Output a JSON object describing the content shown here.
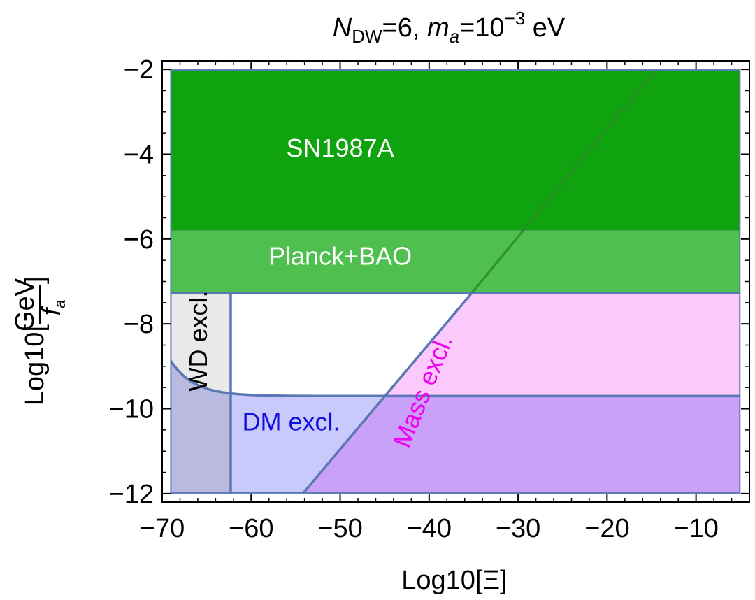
{
  "chart_data": {
    "type": "region",
    "title": {
      "n_symbol": "N",
      "n_sub": "DW",
      "n_value": "=6, ",
      "m_symbol": "m",
      "m_sub": "a",
      "m_value": "=10",
      "m_exp": "−3",
      "m_unit": " eV"
    },
    "xlabel": "Log10[Ξ]",
    "ylabel": {
      "prefix": "Log10[",
      "numerator": "GeV",
      "denominator_symbol": "f",
      "denominator_sub": "a",
      "suffix": "]"
    },
    "xlim": [
      -70,
      -4
    ],
    "ylim": [
      -12.2,
      -1.8
    ],
    "x_ticks": [
      {
        "value": -70,
        "label": "−70"
      },
      {
        "value": -60,
        "label": "−60"
      },
      {
        "value": -50,
        "label": "−50"
      },
      {
        "value": -40,
        "label": "−40"
      },
      {
        "value": -30,
        "label": "−30"
      },
      {
        "value": -20,
        "label": "−20"
      },
      {
        "value": -10,
        "label": "−10"
      }
    ],
    "y_ticks": [
      {
        "value": -2,
        "label": "−2"
      },
      {
        "value": -4,
        "label": "−4"
      },
      {
        "value": -6,
        "label": "−6"
      },
      {
        "value": -8,
        "label": "−8"
      },
      {
        "value": -10,
        "label": "−10"
      },
      {
        "value": -12,
        "label": "−12"
      }
    ],
    "plot_range": {
      "x_min": -69.1,
      "x_max": -5,
      "y_min": -12,
      "y_max": -2
    },
    "regions": [
      {
        "name": "SN1987A",
        "label": "SN1987A",
        "color": "#0fa40f",
        "y_from": -5.8,
        "y_to": -2,
        "label_pos": [
          -50,
          -3.9
        ],
        "label_color": "#ffffff"
      },
      {
        "name": "Planck+BAO",
        "label": "Planck+BAO",
        "color": "#4fc04f",
        "y_from": -7.27,
        "y_to": -5.8,
        "label_pos": [
          -50,
          -6.45
        ],
        "label_color": "#ffffff"
      },
      {
        "name": "WD excl.",
        "label": "WD excl.",
        "color": "#e5e5e5",
        "x_boundary": -62.3,
        "label_pos": [
          -65.7,
          -8.4
        ],
        "label_rotation": -90,
        "label_color": "#000000"
      },
      {
        "name": "DM excl.",
        "label": "DM excl.",
        "color": "#c9c9fb",
        "boundary_asymptote": -9.7,
        "label_pos": [
          -55.5,
          -10.35
        ],
        "label_color": "#1010e0"
      },
      {
        "name": "Mass excl.",
        "label": "Mass excl.",
        "color": "#fcc9fc",
        "line": {
          "x1": -54.2,
          "y1": -12,
          "x2": -35.2,
          "y2": -7.27
        },
        "label_pos": [
          -40.5,
          -9.6
        ],
        "label_rotation": -68,
        "label_color": "#f000f0"
      }
    ],
    "diagonal_line": {
      "x1": -54.2,
      "y1": -12,
      "x2": -14.5,
      "y2": -2
    }
  }
}
